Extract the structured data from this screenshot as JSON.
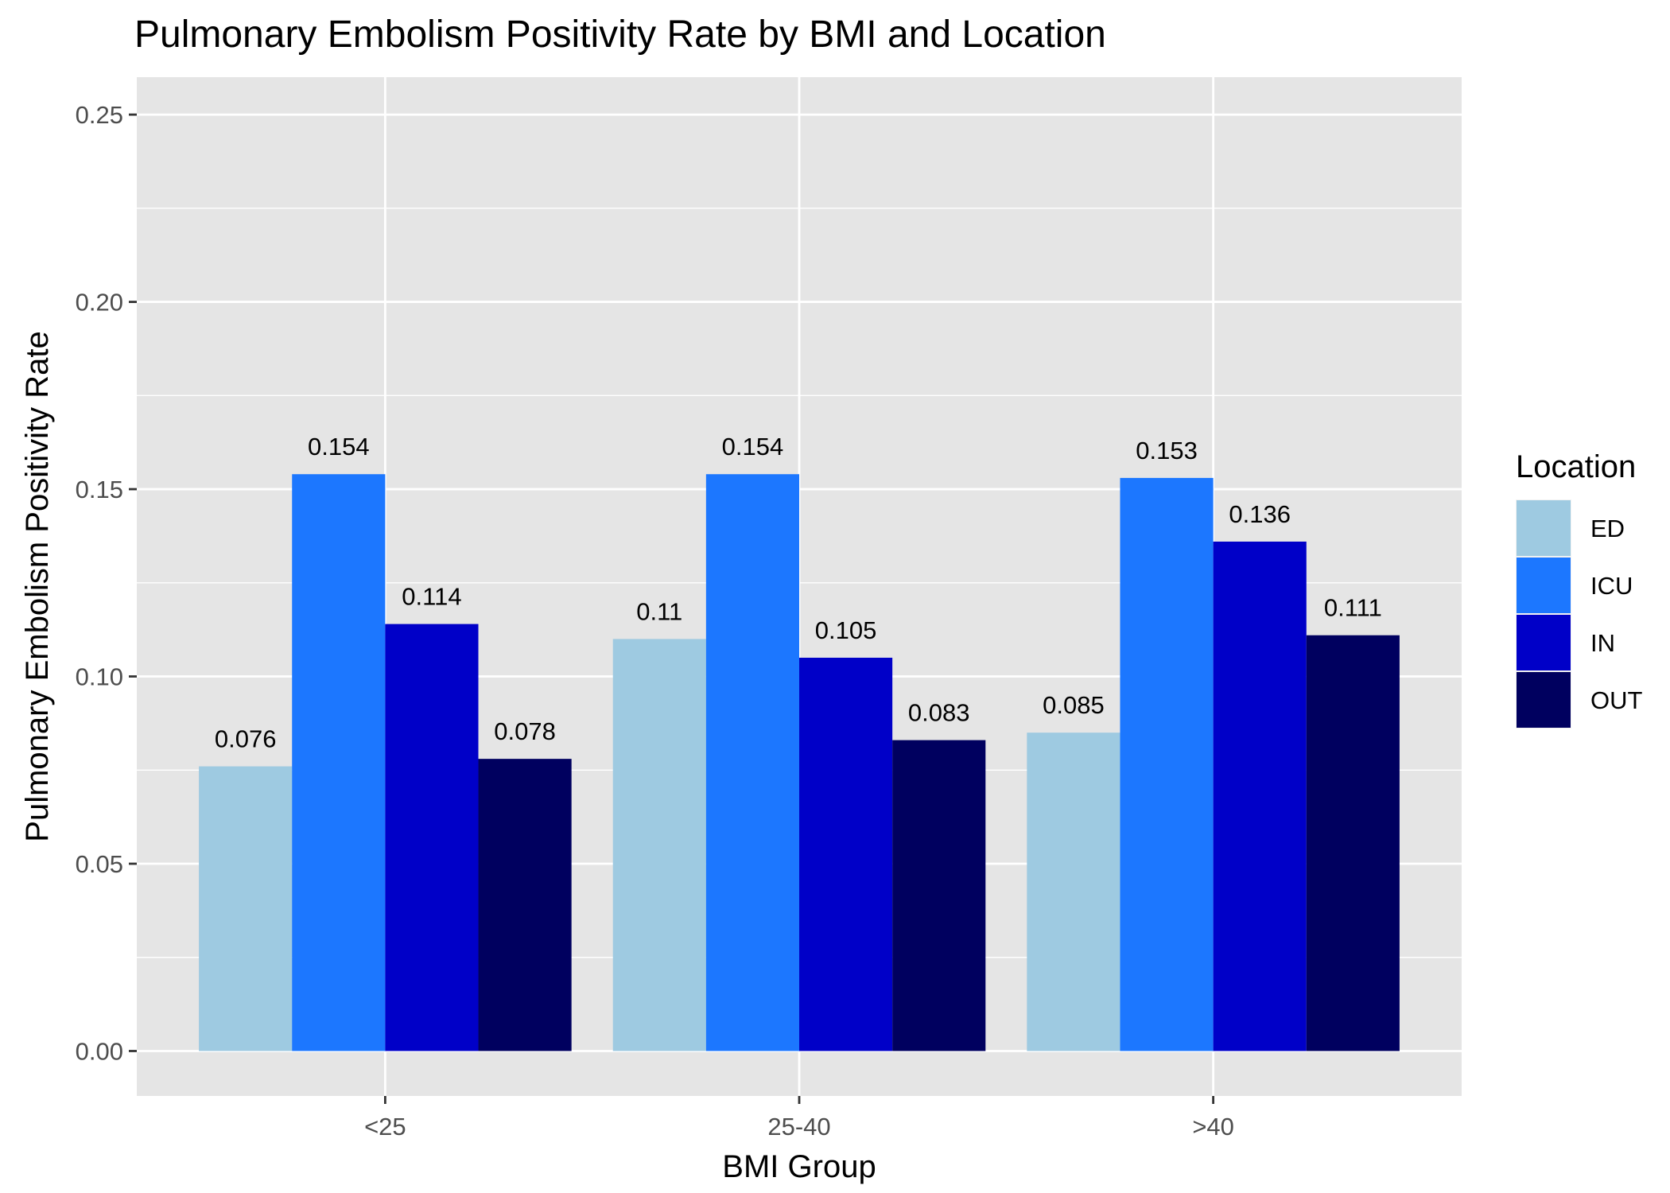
{
  "chart_data": {
    "type": "bar",
    "title": "Pulmonary Embolism Positivity Rate by BMI and Location",
    "xlabel": "BMI Group",
    "ylabel": "Pulmonary Embolism Positivity Rate",
    "categories": [
      "<25",
      "25-40",
      ">40"
    ],
    "ylim": [
      -0.012,
      0.26
    ],
    "yticks": [
      0.0,
      0.05,
      0.1,
      0.15,
      0.2,
      0.25
    ],
    "ytick_labels": [
      "0.00",
      "0.05",
      "0.10",
      "0.15",
      "0.20",
      "0.25"
    ],
    "grid": true,
    "legend_position": "right",
    "legend_title": "Location",
    "series": [
      {
        "name": "ED",
        "color": "#9ecae1",
        "values": [
          0.076,
          0.11,
          0.085
        ],
        "labels": [
          "0.076",
          "0.11",
          "0.085"
        ]
      },
      {
        "name": "ICU",
        "color": "#1c77ff",
        "values": [
          0.154,
          0.154,
          0.153
        ],
        "labels": [
          "0.154",
          "0.154",
          "0.153"
        ]
      },
      {
        "name": "IN",
        "color": "#0000c8",
        "values": [
          0.114,
          0.105,
          0.136
        ],
        "labels": [
          "0.114",
          "0.105",
          "0.136"
        ]
      },
      {
        "name": "OUT",
        "color": "#00005f",
        "values": [
          0.078,
          0.083,
          0.111
        ],
        "labels": [
          "0.078",
          "0.083",
          "0.111"
        ]
      }
    ],
    "panel_background": "#e5e5e5",
    "grid_color": "#ffffff"
  }
}
